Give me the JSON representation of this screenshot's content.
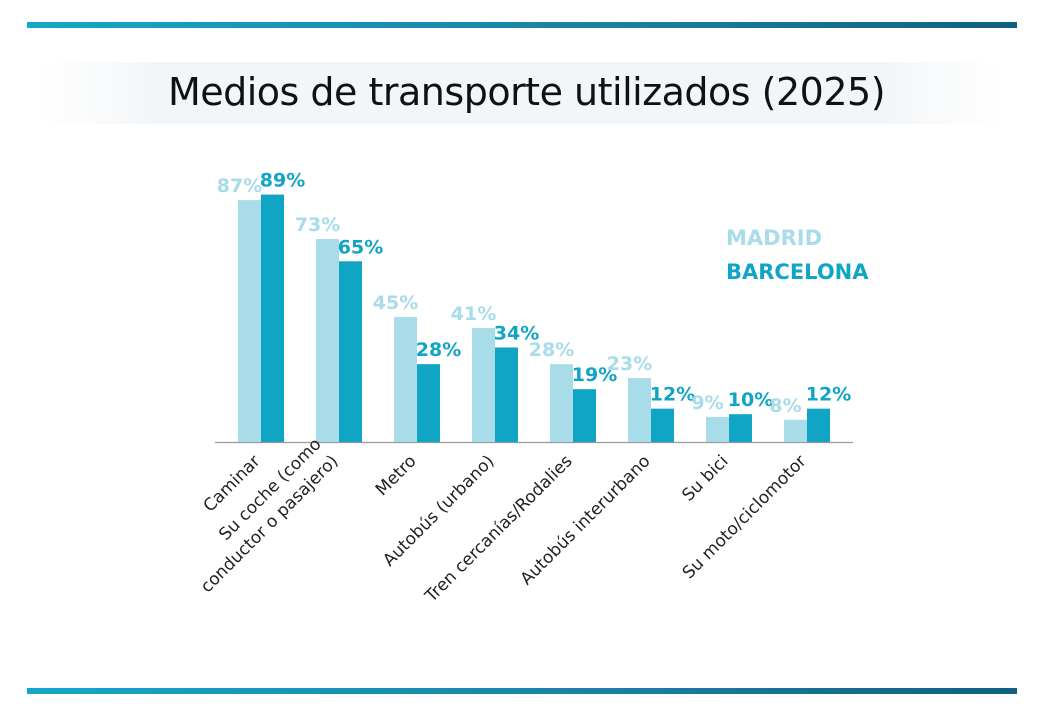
{
  "chart_data": {
    "type": "bar",
    "title": "Medios de transporte utilizados (2025)",
    "xlabel": "",
    "ylabel": "",
    "ylim": [
      0,
      100
    ],
    "grid": false,
    "legend_position": "top-right",
    "categories": [
      "Caminar",
      "Su coche (como conductor o pasajero)",
      "Metro",
      "Autobús (urbano)",
      "Tren cercanías/Rodalies",
      "Autobús interurbano",
      "Su bici",
      "Su moto/ciclomotor"
    ],
    "category_lines": [
      [
        "Caminar"
      ],
      [
        "Su coche (como",
        "conductor o pasajero)"
      ],
      [
        "Metro"
      ],
      [
        "Autobús (urbano)"
      ],
      [
        "Tren cercanías/Rodalies"
      ],
      [
        "Autobús interurbano"
      ],
      [
        "Su bici"
      ],
      [
        "Su moto/ciclomotor"
      ]
    ],
    "series": [
      {
        "name": "MADRID",
        "color": "#a8dce9",
        "values": [
          87,
          73,
          45,
          41,
          28,
          23,
          9,
          8
        ],
        "labels": [
          "87%",
          "73%",
          "45%",
          "41%",
          "28%",
          "23%",
          "9%",
          "8%"
        ]
      },
      {
        "name": "BARCELONA",
        "color": "#11a5c5",
        "values": [
          89,
          65,
          28,
          34,
          19,
          12,
          10,
          12
        ],
        "labels": [
          "89%",
          "65%",
          "28%",
          "34%",
          "19%",
          "12%",
          "10%",
          "12%"
        ]
      }
    ]
  }
}
